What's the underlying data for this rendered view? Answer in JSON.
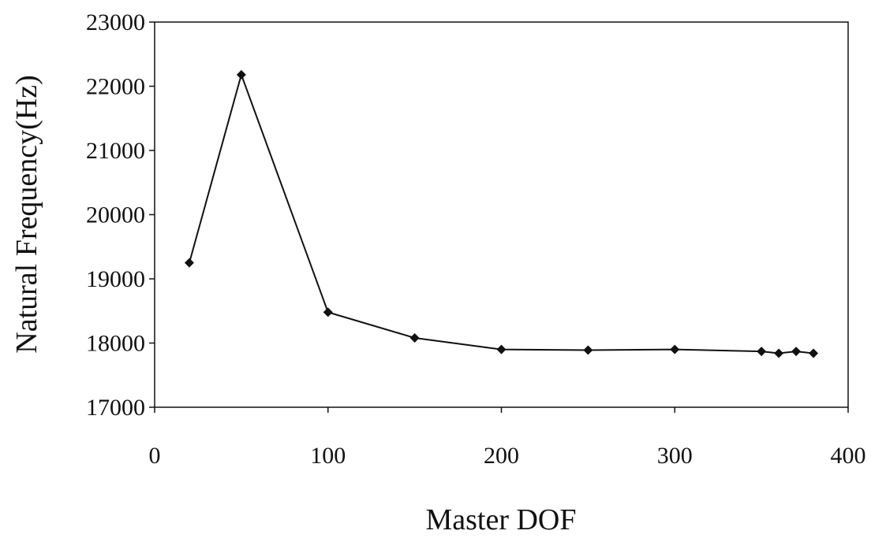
{
  "chart_data": {
    "type": "line",
    "xlabel": "Master DOF",
    "ylabel": "Natural Frequency(Hz)",
    "xlim": [
      0,
      400
    ],
    "ylim": [
      17000,
      23000
    ],
    "x_ticks": [
      0,
      100,
      200,
      300,
      400
    ],
    "y_ticks": [
      17000,
      18000,
      19000,
      20000,
      21000,
      22000,
      23000
    ],
    "grid": false,
    "legend": "none",
    "marker": "diamond",
    "line_color": "#111111",
    "series": [
      {
        "x": [
          20,
          50,
          100,
          150,
          200,
          250,
          300,
          350,
          360,
          370,
          380
        ],
        "y": [
          19250,
          22180,
          18480,
          18080,
          17900,
          17890,
          17900,
          17870,
          17840,
          17870,
          17840
        ]
      }
    ]
  }
}
